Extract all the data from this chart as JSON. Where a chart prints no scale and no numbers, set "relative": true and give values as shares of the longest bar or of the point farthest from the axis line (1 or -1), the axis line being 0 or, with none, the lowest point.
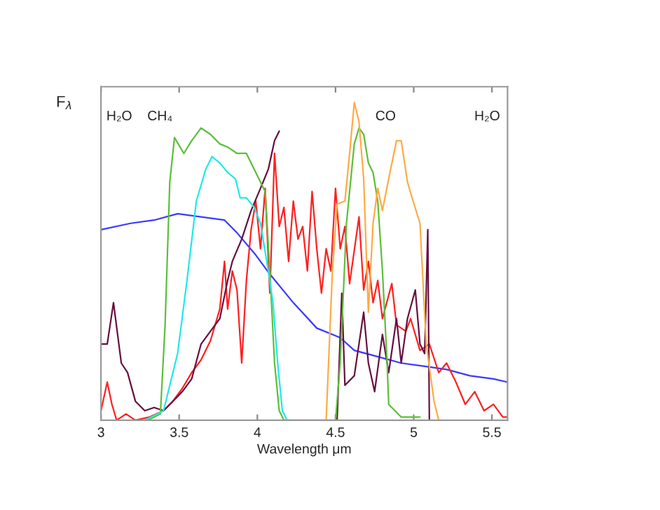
{
  "chart_data": {
    "type": "line",
    "relative": true,
    "xlabel": "Wavelength μm",
    "ylabel": "F$_{λ}$",
    "xlim": [
      3,
      5.6
    ],
    "xticks": [
      3,
      3.5,
      4,
      4.5,
      5,
      5.5
    ],
    "grid": false,
    "legend": false,
    "marker": "none",
    "line_style": "solid",
    "annotations": [
      "H₂O",
      "CH₄",
      "CO",
      "H₂O"
    ],
    "series": [
      {
        "color": "#3a3aff",
        "x": [
          3.0,
          3.19,
          3.34,
          3.49,
          3.64,
          3.79,
          3.87,
          3.99,
          4.08,
          4.23,
          4.38,
          4.53,
          4.62,
          4.77,
          4.92,
          5.07,
          5.21,
          5.36,
          5.51,
          5.6
        ],
        "values": [
          0.6,
          0.62,
          0.63,
          0.65,
          0.64,
          0.63,
          0.59,
          0.52,
          0.46,
          0.37,
          0.29,
          0.26,
          0.22,
          0.2,
          0.18,
          0.17,
          0.16,
          0.14,
          0.13,
          0.12
        ]
      },
      {
        "color": "#ff2020",
        "x": [
          3.0,
          3.04,
          3.07,
          3.1,
          3.16,
          3.22,
          3.31,
          3.4,
          3.46,
          3.52,
          3.58,
          3.64,
          3.7,
          3.76,
          3.79,
          3.81,
          3.84,
          3.87,
          3.9,
          3.93,
          3.96,
          3.99,
          4.02,
          4.05,
          4.08,
          4.11,
          4.14,
          4.17,
          4.2,
          4.23,
          4.26,
          4.29,
          4.32,
          4.35,
          4.38,
          4.41,
          4.44,
          4.47,
          4.5,
          4.53,
          4.56,
          4.59,
          4.65,
          4.68,
          4.71,
          4.74,
          4.77,
          4.8,
          4.86,
          4.89,
          4.95,
          4.98,
          5.04,
          5.1,
          5.16,
          5.21,
          5.27,
          5.33,
          5.39,
          5.45,
          5.51,
          5.57,
          5.6
        ],
        "values": [
          0.03,
          0.12,
          0.05,
          0.0,
          0.02,
          0.0,
          0.01,
          0.03,
          0.06,
          0.1,
          0.15,
          0.19,
          0.25,
          0.35,
          0.5,
          0.35,
          0.47,
          0.41,
          0.18,
          0.44,
          0.6,
          0.69,
          0.54,
          0.73,
          0.4,
          0.84,
          0.61,
          0.67,
          0.5,
          0.69,
          0.57,
          0.61,
          0.47,
          0.72,
          0.54,
          0.4,
          0.54,
          0.47,
          0.73,
          0.54,
          0.61,
          0.43,
          0.64,
          0.41,
          0.5,
          0.37,
          0.44,
          0.32,
          0.43,
          0.3,
          0.28,
          0.32,
          0.22,
          0.24,
          0.15,
          0.18,
          0.12,
          0.05,
          0.09,
          0.03,
          0.05,
          0.01,
          0.01
        ]
      },
      {
        "color": "#66113f",
        "x": [
          3.0,
          3.04,
          3.08,
          3.13,
          3.17,
          3.22,
          3.28,
          3.34,
          3.4,
          3.46,
          3.52,
          3.58,
          3.64,
          3.7,
          3.76,
          3.81,
          3.84,
          3.9,
          3.96,
          4.02,
          4.07,
          4.11,
          4.14,
          4.3,
          4.51,
          4.54,
          4.56,
          4.62,
          4.68,
          4.71,
          4.75,
          4.8,
          4.84,
          4.89,
          4.92,
          4.96,
          5.01,
          5.04,
          5.07,
          5.09,
          5.1
        ],
        "values": [
          0.24,
          0.24,
          0.37,
          0.18,
          0.15,
          0.06,
          0.03,
          0.04,
          0.03,
          0.06,
          0.09,
          0.13,
          0.24,
          0.28,
          0.32,
          0.44,
          0.5,
          0.57,
          0.66,
          0.73,
          0.79,
          0.88,
          0.91,
          null,
          0.0,
          0.4,
          0.11,
          0.14,
          0.34,
          0.18,
          0.09,
          0.27,
          0.15,
          0.32,
          0.18,
          0.32,
          0.41,
          0.24,
          0.21,
          0.6,
          0.0
        ]
      },
      {
        "color": "#5cbf3a",
        "x": [
          3.3,
          3.38,
          3.41,
          3.44,
          3.47,
          3.53,
          3.58,
          3.64,
          3.7,
          3.76,
          3.81,
          3.87,
          3.93,
          3.99,
          4.05,
          4.08,
          4.11,
          4.14,
          4.17,
          4.5,
          4.53,
          4.57,
          4.62,
          4.65,
          4.68,
          4.71,
          4.74,
          4.77,
          4.8,
          4.83,
          4.84,
          4.92,
          5.04
        ],
        "values": [
          0.0,
          0.02,
          0.3,
          0.75,
          0.89,
          0.84,
          0.88,
          0.92,
          0.9,
          0.87,
          0.86,
          0.84,
          0.84,
          0.78,
          0.72,
          0.47,
          0.18,
          0.03,
          0.0,
          0.0,
          0.18,
          0.62,
          0.87,
          0.92,
          0.9,
          0.81,
          0.78,
          0.69,
          0.47,
          0.18,
          0.05,
          0.01,
          0.01
        ]
      },
      {
        "color": "#22e8e8",
        "x": [
          3.28,
          3.4,
          3.49,
          3.55,
          3.61,
          3.67,
          3.71,
          3.76,
          3.81,
          3.86,
          3.89,
          3.93,
          3.98,
          4.02,
          4.07,
          4.1,
          4.13,
          4.16,
          4.19
        ],
        "values": [
          0.0,
          0.03,
          0.21,
          0.44,
          0.69,
          0.79,
          0.83,
          0.81,
          0.78,
          0.76,
          0.7,
          0.7,
          0.67,
          0.62,
          0.47,
          0.37,
          0.18,
          0.03,
          0.0
        ]
      },
      {
        "color": "#ffaa44",
        "x": [
          4.44,
          4.48,
          4.51,
          4.56,
          4.59,
          4.62,
          4.65,
          4.68,
          4.71,
          4.74,
          4.77,
          4.8,
          4.84,
          4.89,
          4.92,
          4.96,
          4.99,
          5.04,
          5.08,
          5.13,
          5.16
        ],
        "values": [
          0.0,
          0.47,
          0.68,
          0.69,
          0.84,
          1.0,
          0.94,
          0.76,
          0.34,
          0.62,
          0.73,
          0.66,
          0.76,
          0.88,
          0.88,
          0.75,
          0.7,
          0.62,
          0.24,
          0.06,
          0.0
        ]
      }
    ]
  }
}
